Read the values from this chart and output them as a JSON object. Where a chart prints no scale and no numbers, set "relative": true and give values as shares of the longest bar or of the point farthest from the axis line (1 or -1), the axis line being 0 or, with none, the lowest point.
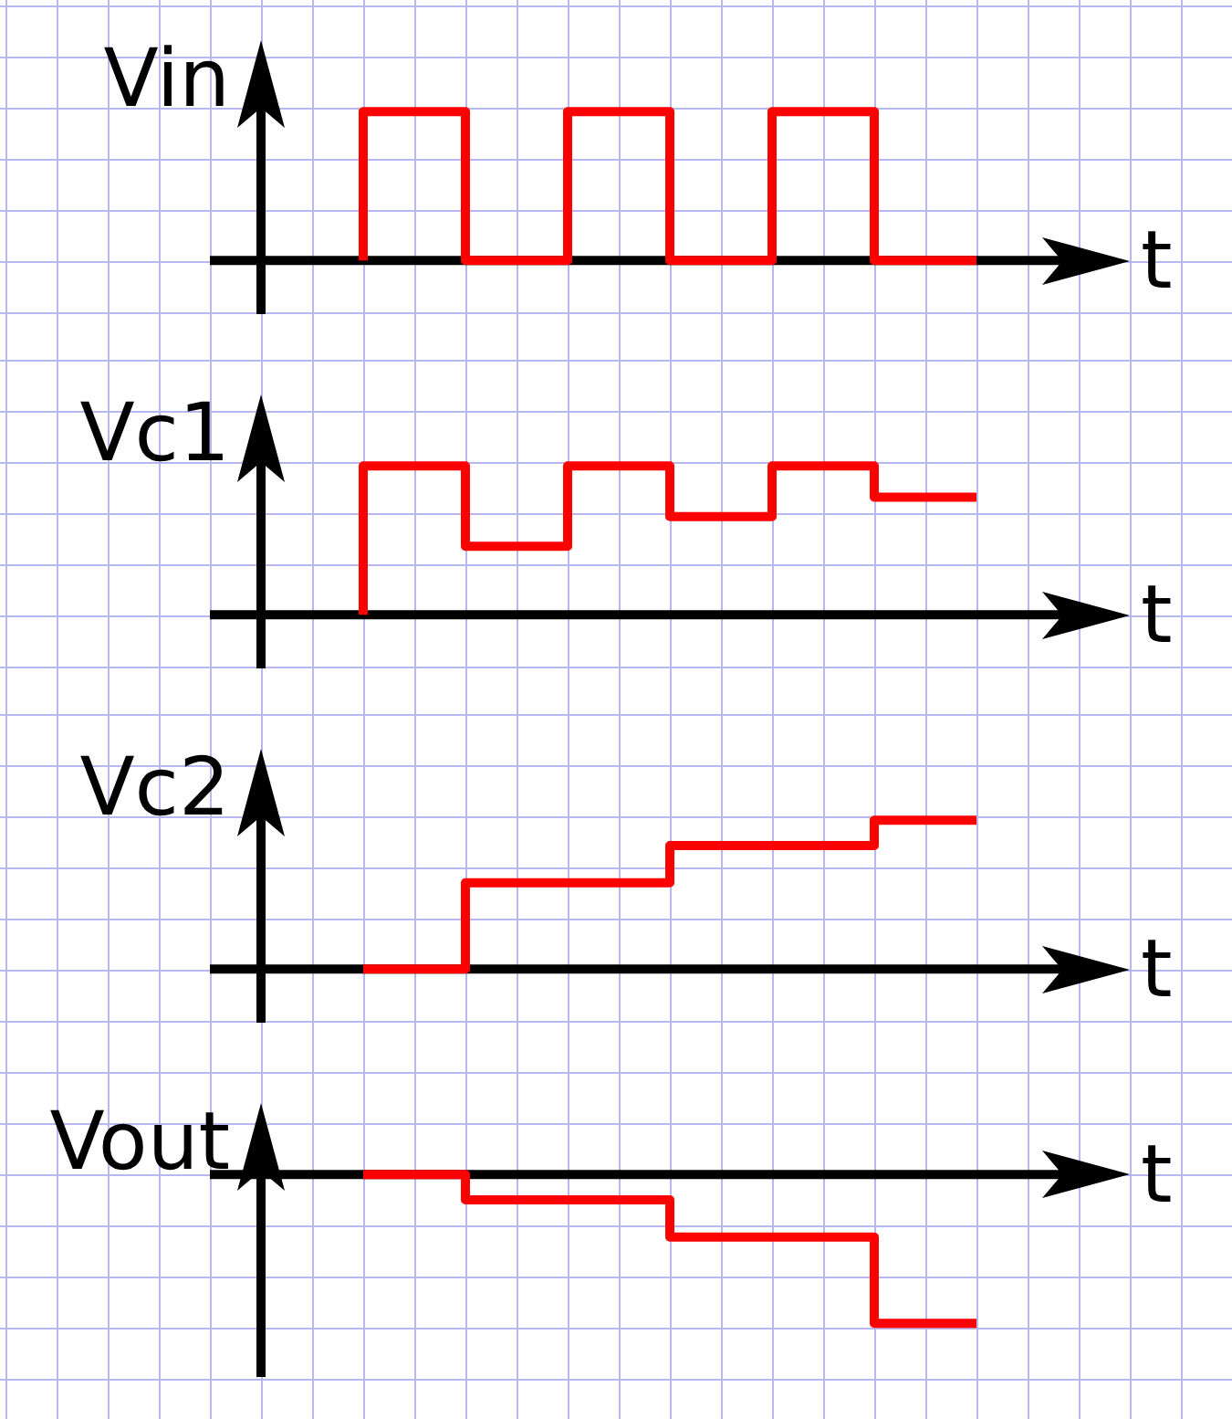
{
  "chart_data": [
    {
      "type": "step",
      "relative": true,
      "ylabel": "Vin",
      "xlabel": "t",
      "grid": true,
      "color": "#ff0000",
      "categories": [
        null,
        null,
        null,
        null,
        null,
        null,
        null,
        null,
        null
      ],
      "values": [
        null,
        0,
        1,
        0,
        1,
        0,
        1,
        0,
        null
      ]
    },
    {
      "type": "step",
      "relative": true,
      "ylabel": "Vc1",
      "xlabel": "t",
      "grid": true,
      "color": "#ff0000",
      "categories": [
        null,
        null,
        null,
        null,
        null,
        null,
        null,
        null,
        null
      ],
      "values": [
        null,
        0,
        1,
        0.46,
        1,
        0.66,
        1,
        0.79,
        null
      ]
    },
    {
      "type": "step",
      "relative": true,
      "ylabel": "Vc2",
      "xlabel": "t",
      "grid": true,
      "color": "#ff0000",
      "categories": [
        null,
        null,
        null,
        null,
        null,
        null,
        null,
        null,
        null
      ],
      "values": [
        null,
        0,
        0,
        0.58,
        0.58,
        0.83,
        0.83,
        1,
        null
      ]
    },
    {
      "type": "step",
      "relative": true,
      "ylabel": "Vout",
      "xlabel": "t",
      "grid": true,
      "color": "#ff0000",
      "categories": [
        null,
        null,
        null,
        null,
        null,
        null,
        null,
        null,
        null
      ],
      "values": [
        null,
        0,
        0,
        -0.17,
        -0.17,
        -0.42,
        -0.42,
        -1,
        null
      ]
    }
  ]
}
